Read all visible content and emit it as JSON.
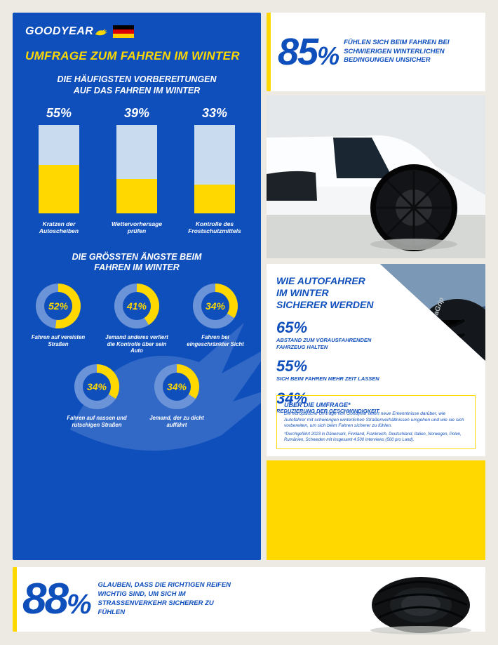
{
  "brand": {
    "name": "GOODYEAR"
  },
  "headline": "UMFRAGE ZUM FAHREN IM WINTER",
  "preparations": {
    "title_l1": "DIE HÄUFIGSTEN VORBEREITUNGEN",
    "title_l2": "AUF DAS FAHREN IM WINTER",
    "bar_colors": {
      "fill": "#ffd800",
      "track": "#c9dbee"
    },
    "items": [
      {
        "pct": 55,
        "pct_label": "55%",
        "label": "Kratzen der Autoscheiben"
      },
      {
        "pct": 39,
        "pct_label": "39%",
        "label": "Wettervorhersage prüfen"
      },
      {
        "pct": 33,
        "pct_label": "33%",
        "label": "Kontrolle des Frostschutzmittels"
      }
    ]
  },
  "fears": {
    "title_l1": "DIE GRÖSSTEN ÄNGSTE BEIM",
    "title_l2": "FAHREN IM WINTER",
    "ring_colors": {
      "progress": "#ffd800",
      "track": "#6b93d8"
    },
    "items": [
      {
        "pct": 52,
        "pct_label": "52%",
        "label": "Fahren auf vereisten Straßen"
      },
      {
        "pct": 41,
        "pct_label": "41%",
        "label": "Jemand anderes verliert die Kontrolle über sein Auto"
      },
      {
        "pct": 34,
        "pct_label": "34%",
        "label": "Fahren bei eingeschränkter Sicht"
      },
      {
        "pct": 34,
        "pct_label": "34%",
        "label": "Fahren auf nassen und rutschigen Straßen"
      },
      {
        "pct": 34,
        "pct_label": "34%",
        "label": "Jemand, der zu dicht auffährt"
      }
    ]
  },
  "hero_stat": {
    "pct_label": "85%",
    "desc": "FÜHLEN SICH BEIM FAHREN BEI SCHWIERIGEN WINTERLICHEN BEDINGUNGEN UNSICHER"
  },
  "safer": {
    "title_l1": "WIE AUTOFAHRER",
    "title_l2": "IM WINTER",
    "title_l3": "SICHERER WERDEN",
    "items": [
      {
        "pct_label": "65%",
        "label": "ABSTAND ZUM VORAUSFAHRENDEN FAHRZEUG HALTEN"
      },
      {
        "pct_label": "55%",
        "label": "SICH BEIM FAHREN MEHR ZEIT LASSEN"
      },
      {
        "pct_label": "34%",
        "label": "REDUZIERUNG DER GESCHWINDIGKEIT"
      }
    ]
  },
  "about": {
    "title": "ÜBER DIE UMFRAGE*",
    "body": "Die europäische Umfrage von Goodyear liefert neue Erkenntnisse darüber, wie Autofahrer mit schwierigen winterlichen Straßenverhältnissen umgehen und wie sie sich vorbereiten, um sich beim Fahren sicherer zu fühlen.",
    "footnote": "*Durchgeführt 2023 in Dänemark, Finnland, Frankreich, Deutschland, Italien, Norwegen, Polen, Rumänien, Schweden mit insgesamt 4.500 Interviews (500 pro Land)."
  },
  "bottom_stat": {
    "pct_label": "88%",
    "desc": "GLAUBEN, DASS DIE RICHTIGEN REIFEN WICHTIG SIND, UM SICH IM STRASSENVERKEHR SICHERER ZU FÜHLEN"
  },
  "colors": {
    "blue": "#0f4fbc",
    "yellow": "#ffd800",
    "page_bg": "#eceae3",
    "white": "#ffffff"
  }
}
